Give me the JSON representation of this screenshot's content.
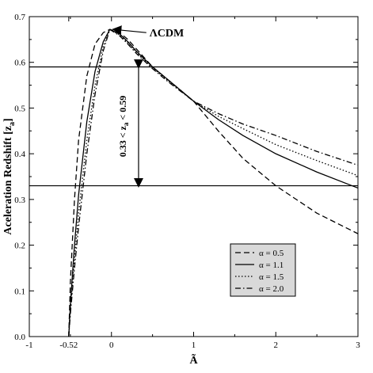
{
  "chart_data": {
    "type": "line",
    "title": "",
    "xlabel": "Ã",
    "ylabel": "Aceleration Redshift [z",
    "ylabel_subscript": "a",
    "ylabel_close": "]",
    "xlim": [
      -1,
      3
    ],
    "ylim": [
      0,
      0.7
    ],
    "x_ticks": [
      -1,
      -0.52,
      0,
      1,
      2,
      3
    ],
    "x_tick_labels": [
      "-1",
      "-0.52",
      "0",
      "1",
      "2",
      "3"
    ],
    "y_ticks": [
      0,
      0.1,
      0.2,
      0.3,
      0.4,
      0.5,
      0.6,
      0.7
    ],
    "y_tick_labels": [
      "0.0",
      "0.1",
      "0.2",
      "0.3",
      "0.4",
      "0.5",
      "0.6",
      "0.7"
    ],
    "grid": false,
    "legend_position": "bottom-right",
    "series": [
      {
        "name": "α = 0.5",
        "dash": "dashed",
        "x": [
          -0.52,
          -0.5,
          -0.45,
          -0.4,
          -0.3,
          -0.2,
          -0.1,
          -0.02,
          0.1,
          0.2,
          0.3,
          0.5,
          0.7,
          1.0,
          1.3,
          1.6,
          2.0,
          2.5,
          3.0
        ],
        "y": [
          0.0,
          0.12,
          0.3,
          0.43,
          0.57,
          0.64,
          0.665,
          0.672,
          0.665,
          0.65,
          0.63,
          0.59,
          0.56,
          0.515,
          0.45,
          0.39,
          0.33,
          0.27,
          0.225
        ]
      },
      {
        "name": "α = 1.1",
        "dash": "solid",
        "x": [
          -0.52,
          -0.5,
          -0.45,
          -0.4,
          -0.3,
          -0.2,
          -0.1,
          -0.02,
          0.1,
          0.2,
          0.3,
          0.5,
          0.7,
          1.0,
          1.3,
          1.6,
          2.0,
          2.5,
          3.0
        ],
        "y": [
          0.0,
          0.07,
          0.2,
          0.31,
          0.47,
          0.58,
          0.645,
          0.672,
          0.662,
          0.645,
          0.625,
          0.59,
          0.56,
          0.515,
          0.475,
          0.44,
          0.4,
          0.36,
          0.325
        ]
      },
      {
        "name": "α = 1.5",
        "dash": "dotted",
        "x": [
          -0.52,
          -0.5,
          -0.45,
          -0.4,
          -0.3,
          -0.2,
          -0.1,
          -0.02,
          0.1,
          0.2,
          0.3,
          0.5,
          0.7,
          1.0,
          1.3,
          1.6,
          2.0,
          2.5,
          3.0
        ],
        "y": [
          0.0,
          0.06,
          0.17,
          0.27,
          0.43,
          0.55,
          0.635,
          0.672,
          0.66,
          0.642,
          0.622,
          0.588,
          0.558,
          0.515,
          0.482,
          0.455,
          0.42,
          0.385,
          0.352
        ]
      },
      {
        "name": "α = 2.0",
        "dash": "dash-dot",
        "x": [
          -0.52,
          -0.5,
          -0.45,
          -0.4,
          -0.3,
          -0.2,
          -0.1,
          -0.02,
          0.1,
          0.2,
          0.3,
          0.5,
          0.7,
          1.0,
          1.3,
          1.6,
          2.0,
          2.5,
          3.0
        ],
        "y": [
          0.0,
          0.05,
          0.15,
          0.24,
          0.4,
          0.53,
          0.625,
          0.672,
          0.658,
          0.64,
          0.62,
          0.586,
          0.556,
          0.515,
          0.488,
          0.465,
          0.44,
          0.405,
          0.375
        ]
      }
    ],
    "reference_lines": [
      0.59,
      0.33
    ],
    "annotations": {
      "lcdm_label": "ΛCDM",
      "lcdm_point": [
        0.0,
        0.672
      ],
      "range_label": "0.33 < z",
      "range_sub": "a",
      "range_label_end": " < 0.59",
      "range_arrow_x": 0.33,
      "range": [
        0.33,
        0.59
      ]
    }
  }
}
